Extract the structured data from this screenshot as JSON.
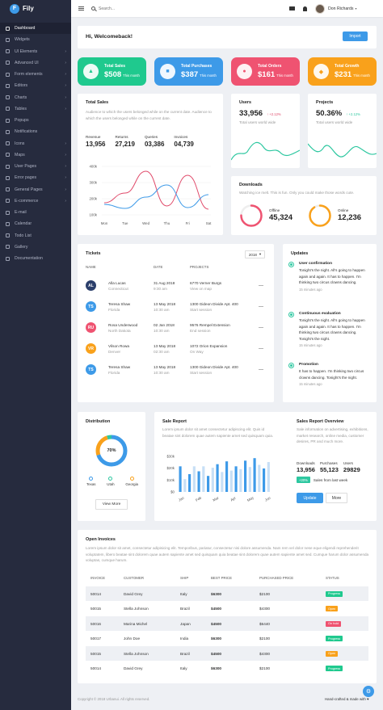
{
  "app": {
    "name": "Fily",
    "logo_letter": "F"
  },
  "sidebar": {
    "items": [
      {
        "label": "Dashboard",
        "chevron": false,
        "active": true
      },
      {
        "label": "Widgets",
        "chevron": false
      },
      {
        "label": "UI Elements",
        "chevron": true
      },
      {
        "label": "Advanced UI",
        "chevron": true
      },
      {
        "label": "Form elements",
        "chevron": true
      },
      {
        "label": "Editors",
        "chevron": true
      },
      {
        "label": "Charts",
        "chevron": true
      },
      {
        "label": "Tables",
        "chevron": true
      },
      {
        "label": "Popups",
        "chevron": false
      },
      {
        "label": "Notifications",
        "chevron": false
      },
      {
        "label": "Icons",
        "chevron": true
      },
      {
        "label": "Maps",
        "chevron": true
      },
      {
        "label": "User Pages",
        "chevron": true
      },
      {
        "label": "Error pages",
        "chevron": true
      },
      {
        "label": "General Pages",
        "chevron": true
      },
      {
        "label": "E-commerce",
        "chevron": true
      },
      {
        "label": "E-mail",
        "chevron": false
      },
      {
        "label": "Calendar",
        "chevron": false
      },
      {
        "label": "Todo List",
        "chevron": false
      },
      {
        "label": "Gallery",
        "chevron": false
      },
      {
        "label": "Documentation",
        "chevron": false
      }
    ]
  },
  "topbar": {
    "search_placeholder": "Search...",
    "user_name": "Don Richards"
  },
  "welcome": {
    "title": "Hi, Welcomeback!",
    "import_label": "Import"
  },
  "stat_cards": [
    {
      "label": "Total Sales",
      "value": "$508",
      "suffix": "This month",
      "color": "#1fc98e",
      "icon": "▲"
    },
    {
      "label": "Total Purchases",
      "value": "$387",
      "suffix": "This month",
      "color": "#3d9ae8",
      "icon": "■"
    },
    {
      "label": "Total Orders",
      "value": "$161",
      "suffix": "This month",
      "color": "#ef5371",
      "icon": "●"
    },
    {
      "label": "Total Growth",
      "value": "$231",
      "suffix": "This month",
      "color": "#f9a11b",
      "icon": "◆"
    }
  ],
  "total_sales": {
    "title": "Total Sales",
    "desc": "Audience to which the users belonged while on the current date. Audience to which the users belonged while on the current date.",
    "stats": [
      {
        "label": "Revenue",
        "value": "13,956"
      },
      {
        "label": "Returns",
        "value": "27,219"
      },
      {
        "label": "Queries",
        "value": "03,386"
      },
      {
        "label": "Invoices",
        "value": "04,739"
      }
    ]
  },
  "chart_data": {
    "type": "line",
    "categories": [
      "Mon",
      "Tue",
      "Wed",
      "Thu",
      "Fri",
      "Sat"
    ],
    "y_ticks": [
      "400k",
      "300k",
      "200k",
      "100k"
    ],
    "ylim": [
      100,
      400
    ],
    "series": [
      {
        "values": [
          175,
          235,
          370,
          155,
          345,
          135
        ],
        "color": "#e04a6a"
      },
      {
        "values": [
          165,
          140,
          210,
          285,
          145,
          225
        ],
        "color": "#3d9ae8"
      }
    ]
  },
  "users": {
    "title": "Users",
    "value": "33,956",
    "change": "+2.12%",
    "subtitle": "Total users world wide",
    "color": "#2dc7a0"
  },
  "projects": {
    "title": "Projects",
    "value": "50.36%",
    "change": "+2.12%",
    "subtitle": "Total users world wide",
    "color": "#2dc7a0"
  },
  "downloads": {
    "title": "Downloads",
    "desc": "Watching ice melt. This is fun. Only you could make those words cute.",
    "offline": {
      "label": "Offline",
      "value": "45,324",
      "color": "#ef5371",
      "pct": 0.75
    },
    "online": {
      "label": "Online",
      "value": "12,236",
      "color": "#f9a11b",
      "pct": 0.9
    }
  },
  "tickets": {
    "title": "Tickets",
    "year": "2018",
    "headers": [
      "NAME",
      "DATE",
      "PROJECTS"
    ],
    "rows": [
      {
        "initials": "AL",
        "color": "#2b3f6b",
        "name": "Alla Lucas",
        "sub": "Connecticut",
        "date": "31 Aug 2018",
        "time": "9:30 am",
        "project": "6770 Verner Burgs",
        "psub": "View on map"
      },
      {
        "initials": "TS",
        "color": "#3d9ae8",
        "name": "Teresa Shaw",
        "sub": "Florida",
        "date": "13 May 2018",
        "time": "10:30 am",
        "project": "1300 Gideon Divide Apt. 400",
        "psub": "Start session"
      },
      {
        "initials": "RU",
        "color": "#ef5371",
        "name": "Rosa Underwood",
        "sub": "North Dakota",
        "date": "02 Jan 2018",
        "time": "10:30 am",
        "project": "9576 Rempel Extension",
        "psub": "End session"
      },
      {
        "initials": "VR",
        "color": "#f9a11b",
        "name": "Vilson Rowa",
        "sub": "Denver",
        "date": "13 May 2018",
        "time": "02:30 am",
        "project": "1072 Orion Expansion",
        "psub": "On Way"
      },
      {
        "initials": "TS",
        "color": "#3d9ae8",
        "name": "Teresa Shaw",
        "sub": "Florida",
        "date": "13 May 2018",
        "time": "10:30 am",
        "project": "1300 Gideon Divide Apt. 400",
        "psub": "Start session"
      }
    ]
  },
  "updates": {
    "title": "Updates",
    "items": [
      {
        "title": "User confirmation",
        "body": "Tonight's the night. All's going to happen again and again. It has to happen. I'm thinking two circus clowns dancing.",
        "time": "15 minutes ago"
      },
      {
        "title": "Continuous evaluation",
        "body": "Tonight's the night. All's going to happen again and again. It has to happen. I'm thinking two circus clowns dancing. Tonight's the night.",
        "time": "15 minutes ago"
      },
      {
        "title": "Promotion",
        "body": "It has to happen. I'm thinking two circus clowns dancing. Tonight's the night.",
        "time": "15 minutes ago"
      }
    ]
  },
  "distribution": {
    "title": "Distribution",
    "center": "70%",
    "legend": [
      {
        "label": "Texas",
        "color": "#3d9ae8"
      },
      {
        "label": "Utah",
        "color": "#2dc7a0"
      },
      {
        "label": "Georgia",
        "color": "#f9a11b"
      }
    ],
    "button": "View More"
  },
  "sale_report": {
    "title": "Sale Report",
    "desc": "Lorem ipsum dolor sit amet consectetur adipiscing elit. Quis id beatae sint dolorem quae autem sapiente amet sed quisquam quia.",
    "y_ticks": [
      "$30k",
      "$20k",
      "$10k",
      "$0"
    ],
    "months": [
      "Jan",
      "Feb",
      "Mar",
      "Apr",
      "May",
      "Jun"
    ],
    "bars": [
      0.72,
      0.36,
      0.5,
      0.72,
      0.58,
      0.72,
      0.45,
      0.68,
      0.78,
      0.56,
      0.86,
      0.6,
      0.72,
      0.64,
      0.88,
      0.7,
      0.95,
      0.76,
      0.66,
      0.84
    ]
  },
  "sales_overview": {
    "title": "Sales Report Overview",
    "desc": "Sale information on advertising, exhibitions, market research, online media, customer desires, PR and much more.",
    "stats": [
      {
        "label": "Downloads",
        "value": "13,956"
      },
      {
        "label": "Purchases",
        "value": "55,123"
      },
      {
        "label": "Users",
        "value": "29829"
      }
    ],
    "change": "+20%",
    "change_text": "Sales from last week",
    "update_label": "Update",
    "more_label": "More"
  },
  "invoices": {
    "title": "Open Invoices",
    "desc": "Lorem ipsum dolor sit amet, consectetur adipisicing elit. Temporibus, pariatur, consectetur nisi dolore assumenda. Nam rem vel dolor nese eque eligendi reprehenderit voluptatem, libero beatae sint dolorem quae autem sapiente amet sed quisquam quia beatae sint dolorem quae autem sapiente amet sed. Cumque harum dolor assumenda voluptas, cumque harum.",
    "headers": [
      "INVOICE",
      "CUSTOMER",
      "SHIP",
      "BEST PRICE",
      "PURCHASED PRICE",
      "STATUS"
    ],
    "rows": [
      {
        "invoice": "50014",
        "customer": "David Grey",
        "ship": "Italy",
        "best": "$6300",
        "purchased": "$2100",
        "status": "Progress",
        "color": "#1fc98e"
      },
      {
        "invoice": "50015",
        "customer": "Stella Johnson",
        "ship": "Brazil",
        "best": "$4500",
        "purchased": "$4300",
        "status": "Open",
        "color": "#f9a11b"
      },
      {
        "invoice": "50016",
        "customer": "Marina Michel",
        "ship": "Japan",
        "best": "$4500",
        "purchased": "$6440",
        "status": "On hold",
        "color": "#ef5371"
      },
      {
        "invoice": "50017",
        "customer": "John Doe",
        "ship": "India",
        "best": "$6300",
        "purchased": "$2100",
        "status": "Progress",
        "color": "#1fc98e"
      },
      {
        "invoice": "50015",
        "customer": "Stella Johnson",
        "ship": "Brazil",
        "best": "$4500",
        "purchased": "$4300",
        "status": "Open",
        "color": "#f9a11b"
      },
      {
        "invoice": "50014",
        "customer": "David Grey",
        "ship": "Italy",
        "best": "$6300",
        "purchased": "$2100",
        "status": "Progress",
        "color": "#1fc98e"
      }
    ]
  },
  "footer": {
    "copyright": "Copyright © 2018 Urbanui. All rights reserved.",
    "made": "Hand-crafted & made with ♥"
  }
}
